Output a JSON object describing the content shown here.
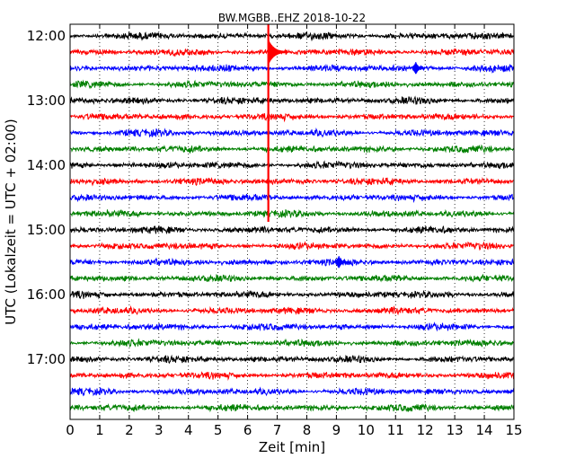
{
  "chart_data": {
    "type": "line",
    "title": "BW.MGBB..EHZ 2018-10-22",
    "xlabel": "Zeit  [min]",
    "ylabel": "UTC (Lokalzeit = UTC + 02:00)",
    "xlim": [
      0,
      15
    ],
    "x_ticks": [
      "0",
      "1",
      "2",
      "3",
      "4",
      "5",
      "6",
      "7",
      "8",
      "9",
      "10",
      "11",
      "12",
      "13",
      "14",
      "15"
    ],
    "y_tick_labels": [
      "12:00",
      "13:00",
      "14:00",
      "15:00",
      "16:00",
      "17:00"
    ],
    "grid": "vertical dotted lines at each minute",
    "series_colors": [
      "#000000",
      "#ff0000",
      "#0000ff",
      "#008000"
    ],
    "traces": [
      {
        "start_utc": "12:00",
        "color": "#000000"
      },
      {
        "start_utc": "12:15",
        "color": "#ff0000"
      },
      {
        "start_utc": "12:30",
        "color": "#0000ff"
      },
      {
        "start_utc": "12:45",
        "color": "#008000"
      },
      {
        "start_utc": "13:00",
        "color": "#000000"
      },
      {
        "start_utc": "13:15",
        "color": "#ff0000"
      },
      {
        "start_utc": "13:30",
        "color": "#0000ff"
      },
      {
        "start_utc": "13:45",
        "color": "#008000"
      },
      {
        "start_utc": "14:00",
        "color": "#000000"
      },
      {
        "start_utc": "14:15",
        "color": "#ff0000"
      },
      {
        "start_utc": "14:30",
        "color": "#0000ff"
      },
      {
        "start_utc": "14:45",
        "color": "#008000"
      },
      {
        "start_utc": "15:00",
        "color": "#000000"
      },
      {
        "start_utc": "15:15",
        "color": "#ff0000"
      },
      {
        "start_utc": "15:30",
        "color": "#0000ff"
      },
      {
        "start_utc": "15:45",
        "color": "#008000"
      },
      {
        "start_utc": "16:00",
        "color": "#000000"
      },
      {
        "start_utc": "16:15",
        "color": "#ff0000"
      },
      {
        "start_utc": "16:30",
        "color": "#0000ff"
      },
      {
        "start_utc": "16:45",
        "color": "#008000"
      },
      {
        "start_utc": "17:00",
        "color": "#000000"
      },
      {
        "start_utc": "17:15",
        "color": "#ff0000"
      },
      {
        "start_utc": "17:30",
        "color": "#0000ff"
      },
      {
        "start_utc": "17:45",
        "color": "#008000"
      }
    ],
    "events": [
      {
        "trace_start_utc": "12:15",
        "minute": 6.7,
        "note": "large spike spanning many lines"
      },
      {
        "trace_start_utc": "12:30",
        "minute": 11.7
      },
      {
        "trace_start_utc": "15:30",
        "minute": 9.1
      }
    ]
  }
}
